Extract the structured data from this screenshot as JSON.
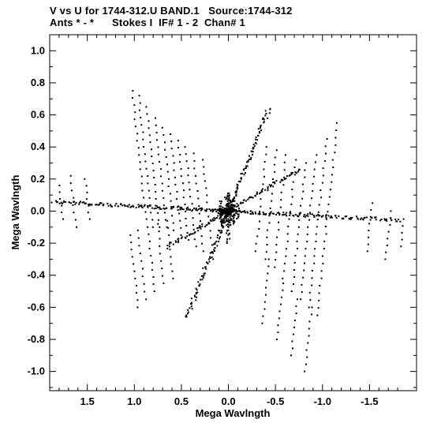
{
  "header": {
    "line1": "V vs U for 1744-312.U BAND.1   Source:1744-312",
    "line2": "Ants * - *      Stokes I  IF# 1 - 2  Chan# 1"
  },
  "chart_data": {
    "type": "scatter",
    "title": "V vs U for 1744-312.U BAND.1   Source:1744-312",
    "subtitle": "Ants * - *      Stokes I  IF# 1 - 2  Chan# 1",
    "xlabel": "Mega Wavlngth",
    "ylabel": "Mega Wavlngth",
    "xlim": [
      1.9,
      -2.0
    ],
    "ylim": [
      -1.12,
      1.1
    ],
    "x_reversed": true,
    "xticks": [
      1.5,
      1.0,
      0.5,
      0.0,
      -0.5,
      -1.0,
      -1.5
    ],
    "xtick_labels": [
      "1.5",
      "1.0",
      "0.5",
      "0.0",
      "-0.5",
      "-1.0",
      "-1.5"
    ],
    "yticks": [
      1.0,
      0.8,
      0.6,
      0.4,
      0.2,
      0.0,
      -0.2,
      -0.4,
      -0.6,
      -0.8,
      -1.0
    ],
    "ytick_labels": [
      "1.0",
      "0.8",
      "0.6",
      "0.4",
      "0.2",
      "0.0",
      "-0.2",
      "-0.4",
      "-0.6",
      "-0.8",
      "-1.0"
    ],
    "grid": false,
    "marker_color": "#000000",
    "arms": [
      {
        "angle_deg": 112,
        "length": 1.18
      },
      {
        "angle_deg": 292,
        "length": 1.22
      },
      {
        "angle_deg": 150,
        "length": 0.92
      },
      {
        "angle_deg": 330,
        "length": 0.78
      },
      {
        "angle_deg": 183,
        "length": 1.85
      },
      {
        "angle_deg": 3,
        "length": 1.95
      },
      {
        "angle_deg": 90,
        "length": 0.22
      },
      {
        "angle_deg": 270,
        "length": 0.35
      }
    ],
    "tracks": [
      {
        "u": 0.95,
        "v": [
          -0.05,
          0.75
        ]
      },
      {
        "u": 0.88,
        "v": [
          -0.1,
          0.72
        ]
      },
      {
        "u": 0.8,
        "v": [
          -0.1,
          0.65
        ]
      },
      {
        "u": 0.72,
        "v": [
          -0.1,
          0.58
        ]
      },
      {
        "u": 0.64,
        "v": [
          -0.12,
          0.52
        ]
      },
      {
        "u": 0.56,
        "v": [
          -0.15,
          0.48
        ]
      },
      {
        "u": 0.48,
        "v": [
          -0.18,
          0.44
        ]
      },
      {
        "u": 0.4,
        "v": [
          -0.22,
          0.4
        ]
      },
      {
        "u": 0.32,
        "v": [
          -0.25,
          0.36
        ]
      },
      {
        "u": 0.22,
        "v": [
          -0.3,
          0.32
        ]
      },
      {
        "u": 1.0,
        "v": [
          -0.6,
          -0.15
        ]
      },
      {
        "u": 0.92,
        "v": [
          -0.55,
          -0.12
        ]
      },
      {
        "u": 0.82,
        "v": [
          -0.5,
          -0.1
        ]
      },
      {
        "u": 0.72,
        "v": [
          -0.45,
          -0.08
        ]
      },
      {
        "u": 0.62,
        "v": [
          -0.42,
          -0.06
        ]
      },
      {
        "u": -0.35,
        "v": [
          -0.25,
          0.4
        ]
      },
      {
        "u": -0.45,
        "v": [
          -0.3,
          0.38
        ]
      },
      {
        "u": -0.55,
        "v": [
          -0.35,
          0.35
        ]
      },
      {
        "u": -0.65,
        "v": [
          -0.42,
          0.32
        ]
      },
      {
        "u": -0.75,
        "v": [
          -0.5,
          0.3
        ]
      },
      {
        "u": -0.85,
        "v": [
          -0.55,
          0.35
        ]
      },
      {
        "u": -0.95,
        "v": [
          -0.6,
          0.45
        ]
      },
      {
        "u": -1.05,
        "v": [
          -0.65,
          0.55
        ]
      },
      {
        "u": -0.4,
        "v": [
          -0.7,
          -0.3
        ]
      },
      {
        "u": -0.55,
        "v": [
          -0.8,
          -0.45
        ]
      },
      {
        "u": -0.7,
        "v": [
          -0.9,
          -0.55
        ]
      },
      {
        "u": -0.85,
        "v": [
          -1.0,
          -0.6
        ]
      },
      {
        "u": 1.5,
        "v": [
          -0.05,
          0.2
        ]
      },
      {
        "u": 1.65,
        "v": [
          -0.1,
          0.22
        ]
      },
      {
        "u": 1.78,
        "v": [
          -0.05,
          0.16
        ]
      },
      {
        "u": -1.5,
        "v": [
          -0.25,
          0.05
        ]
      },
      {
        "u": -1.7,
        "v": [
          -0.3,
          0.0
        ]
      },
      {
        "u": -1.85,
        "v": [
          -0.22,
          -0.05
        ]
      }
    ]
  }
}
